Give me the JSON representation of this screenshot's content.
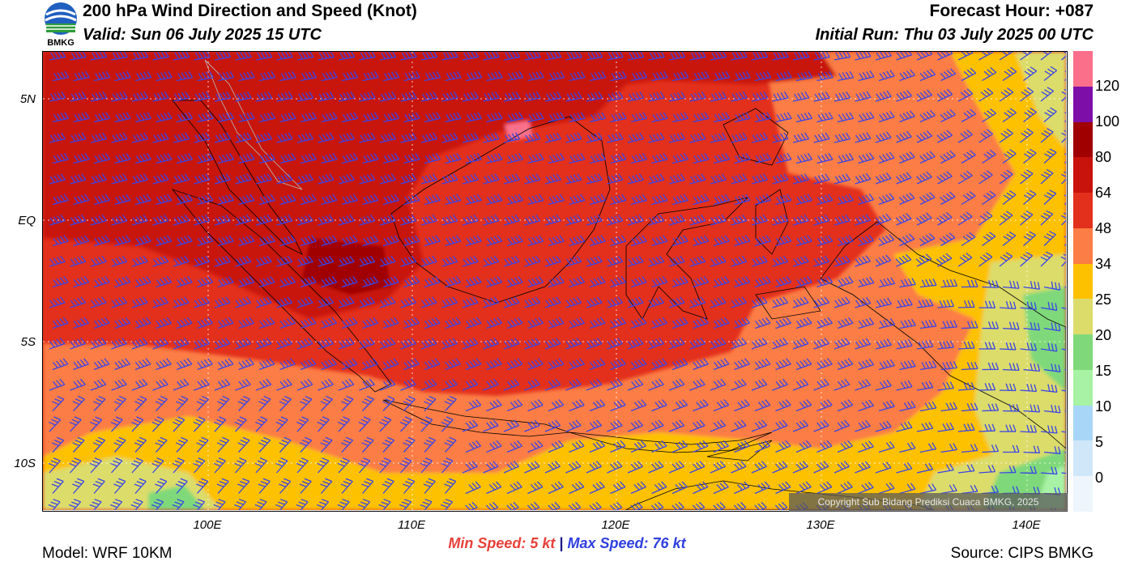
{
  "header": {
    "title": "200 hPa Wind Direction and Speed (Knot)",
    "valid": "Valid: Sun 06 July 2025 15 UTC",
    "forecast_hour": "Forecast Hour: +087",
    "initial_run": "Initial Run: Thu 03 July 2025 00 UTC"
  },
  "logo": {
    "text": "BMKG",
    "icon": "bmkg-logo-icon"
  },
  "map": {
    "lat_labels": [
      "5N",
      "EQ",
      "5S",
      "10S"
    ],
    "lon_labels": [
      "100E",
      "110E",
      "120E",
      "130E",
      "140E"
    ],
    "copyright": "Copyright Sub Bidang Prediksi Cuaca BMKG, 2025",
    "colors": {
      "c0_5": "#eef5fc",
      "c5_10": "#cfe7f9",
      "c10_15": "#a8d6f6",
      "c15_20": "#a7f2a4",
      "c20_25": "#7fd97a",
      "c25_34": "#dcdc6a",
      "c34_48": "#fdc100",
      "c48_64": "#fc7d45",
      "c64_80": "#e2301c",
      "c80_100": "#c8120c",
      "c100_120": "#a00000",
      "c120p": "#7d0fa8",
      "c_top": "#fb6f8a",
      "barb": "#3b45e6",
      "grid": "#ffffff",
      "coast": "#000000"
    }
  },
  "colorbar": {
    "labels": [
      "120",
      "100",
      "80",
      "64",
      "48",
      "34",
      "25",
      "20",
      "15",
      "10",
      "5",
      "0"
    ],
    "colors": [
      "#fb6f8a",
      "#7d0fa8",
      "#a00000",
      "#c8120c",
      "#e2301c",
      "#fc7d45",
      "#fdc100",
      "#dcdc6a",
      "#7fd97a",
      "#a7f2a4",
      "#a8d6f6",
      "#cfe7f9",
      "#eef5fc"
    ]
  },
  "footer": {
    "min_speed": "Min Speed:   5 kt",
    "separator": "|",
    "max_speed": "Max Speed:  76 kt",
    "model": "Model: WRF 10KM",
    "source": "Source: CIPS BMKG"
  }
}
